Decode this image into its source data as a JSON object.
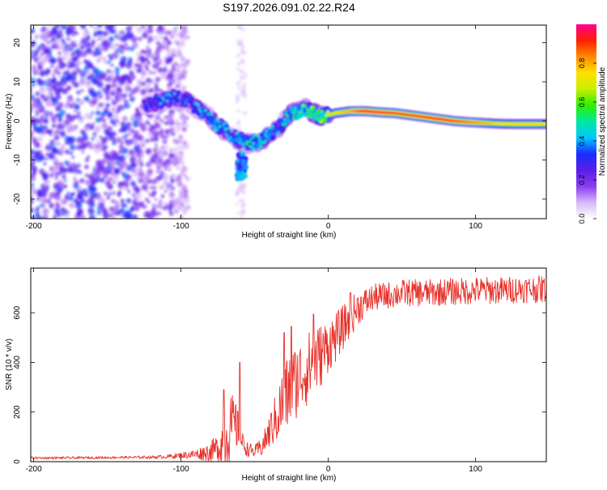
{
  "page_title": "S197.2026.091.02.22.R24",
  "chart_data": [
    {
      "type": "heatmap",
      "title": "S197.2026.091.02.22.R24",
      "xlabel": "Height of straight line (km)",
      "ylabel": "Frequency (Hz)",
      "xlim": [
        -202,
        148
      ],
      "ylim": [
        -25,
        24.5
      ],
      "x_ticks": [
        -200,
        -100,
        0,
        100
      ],
      "x_tick_labels": [
        "-200",
        "-100",
        "0",
        "100"
      ],
      "y_ticks": [
        20,
        10,
        0,
        -10,
        -20
      ],
      "y_tick_labels": [
        "20",
        "10",
        "0",
        "-10",
        "-20"
      ],
      "colorbar": {
        "label": "Normalized spectral amplitude",
        "range": [
          0.0,
          1.0
        ],
        "ticks": [
          0.0,
          0.2,
          0.4,
          0.6,
          0.8
        ],
        "tick_labels": [
          "0.0",
          "0.2",
          "0.4",
          "0.6",
          "0.8"
        ],
        "colormap": [
          "#ffffff",
          "#d8b8f8",
          "#8a3cf0",
          "#5a1ee8",
          "#1a2cff",
          "#00c8ff",
          "#00e8a0",
          "#2cf000",
          "#c8f000",
          "#ffe000",
          "#ff8a00",
          "#ff2000",
          "#ff0090"
        ]
      },
      "ridge": {
        "x": [
          -125,
          -115,
          -105,
          -95,
          -85,
          -75,
          -65,
          -55,
          -45,
          -35,
          -25,
          -15,
          -5,
          5,
          15,
          25,
          35,
          45,
          55,
          65,
          75,
          85,
          95,
          105,
          115,
          125,
          135,
          145
        ],
        "frequency": [
          4,
          5,
          6,
          5,
          2,
          -1,
          -4,
          -6,
          -5,
          -2,
          2,
          3,
          1,
          2,
          2.5,
          2.5,
          2.2,
          2,
          1.5,
          1,
          0.5,
          0,
          -0.3,
          -0.5,
          -0.7,
          -0.8,
          -0.8,
          -0.8
        ],
        "amplitude": [
          0.3,
          0.35,
          0.35,
          0.35,
          0.4,
          0.45,
          0.42,
          0.45,
          0.5,
          0.4,
          0.5,
          0.55,
          0.6,
          0.75,
          0.8,
          0.95,
          0.95,
          0.9,
          0.9,
          0.9,
          0.95,
          0.9,
          0.85,
          0.8,
          0.75,
          0.75,
          0.75,
          0.75
        ]
      },
      "noise_region_x": [
        -202,
        -105
      ]
    },
    {
      "type": "line",
      "xlabel": "Height of straight line (km)",
      "ylabel": "SNR (10 * v/v)",
      "xlim": [
        -202,
        148
      ],
      "ylim": [
        0,
        780
      ],
      "x_ticks": [
        -200,
        -100,
        0,
        100
      ],
      "x_tick_labels": [
        "-200",
        "-100",
        "0",
        "100"
      ],
      "y_ticks": [
        0,
        200,
        400,
        600
      ],
      "y_tick_labels": [
        "0",
        "200",
        "400",
        "600"
      ],
      "line_color": "#e8302a",
      "series": [
        {
          "name": "SNR",
          "x": [
            -202,
            -180,
            -160,
            -140,
            -120,
            -110,
            -100,
            -90,
            -80,
            -75,
            -72,
            -70,
            -67,
            -65,
            -62,
            -60,
            -55,
            -50,
            -45,
            -40,
            -35,
            -30,
            -25,
            -20,
            -15,
            -10,
            -5,
            0,
            5,
            10,
            15,
            20,
            25,
            30,
            40,
            50,
            60,
            70,
            80,
            90,
            100,
            110,
            120,
            130,
            140,
            148
          ],
          "y": [
            15,
            15,
            16,
            17,
            18,
            20,
            25,
            30,
            40,
            55,
            80,
            100,
            130,
            150,
            140,
            90,
            50,
            40,
            60,
            120,
            180,
            250,
            300,
            340,
            370,
            400,
            430,
            470,
            500,
            540,
            580,
            620,
            640,
            660,
            670,
            680,
            680,
            680,
            685,
            685,
            690,
            690,
            690,
            695,
            695,
            695
          ],
          "noise": [
            5,
            5,
            5,
            5,
            6,
            8,
            12,
            20,
            40,
            60,
            100,
            150,
            140,
            120,
            100,
            50,
            30,
            25,
            40,
            70,
            110,
            150,
            160,
            150,
            150,
            140,
            130,
            110,
            100,
            90,
            80,
            70,
            60,
            55,
            55,
            55,
            55,
            55,
            55,
            55,
            55,
            55,
            55,
            55,
            55,
            55
          ],
          "spikes": [
            {
              "x": -71,
              "y": 290
            },
            {
              "x": -60,
              "y": 400
            },
            {
              "x": -30,
              "y": 520
            },
            {
              "x": -25,
              "y": 545
            },
            {
              "x": -10,
              "y": 595
            },
            {
              "x": 15,
              "y": 680
            }
          ]
        }
      ]
    }
  ]
}
